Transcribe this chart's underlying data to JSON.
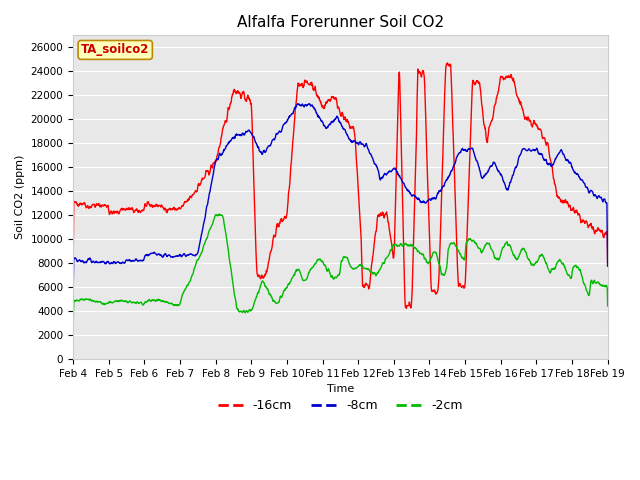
{
  "title": "Alfalfa Forerunner Soil CO2",
  "ylabel": "Soil CO2 (ppm)",
  "xlabel": "Time",
  "annotation": "TA_soilco2",
  "legend_labels": [
    "-16cm",
    "-8cm",
    "-2cm"
  ],
  "legend_colors": [
    "#ff0000",
    "#0000cc",
    "#00bb00"
  ],
  "background_color": "#ffffff",
  "plot_bg_color": "#e8e8e8",
  "grid_color": "#ffffff",
  "yticks": [
    0,
    2000,
    4000,
    6000,
    8000,
    10000,
    12000,
    14000,
    16000,
    18000,
    20000,
    22000,
    24000,
    26000
  ],
  "xtick_labels": [
    "Feb 4",
    "Feb 5",
    "Feb 6",
    "Feb 7",
    "Feb 8",
    "Feb 9",
    "Feb 10",
    "Feb 11",
    "Feb 12",
    "Feb 13",
    "Feb 14",
    "Feb 15",
    "Feb 16",
    "Feb 17",
    "Feb 18",
    "Feb 19"
  ],
  "ylim": [
    0,
    27000
  ],
  "xlim": [
    0,
    15
  ],
  "line_width": 1.0,
  "title_fontsize": 11,
  "axis_fontsize": 8,
  "tick_fontsize": 7.5
}
